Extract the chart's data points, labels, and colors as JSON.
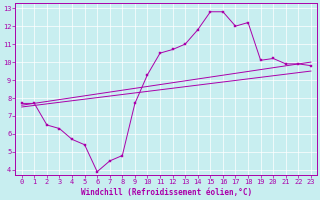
{
  "xlabel": "Windchill (Refroidissement éolien,°C)",
  "ylabel": "",
  "xlim": [
    -0.5,
    23.5
  ],
  "ylim": [
    3.7,
    13.3
  ],
  "xticks": [
    0,
    1,
    2,
    3,
    4,
    5,
    6,
    7,
    8,
    9,
    10,
    11,
    12,
    13,
    14,
    15,
    16,
    17,
    18,
    19,
    20,
    21,
    22,
    23
  ],
  "yticks": [
    4,
    5,
    6,
    7,
    8,
    9,
    10,
    11,
    12,
    13
  ],
  "bg_color": "#c8eef0",
  "line_color": "#aa00aa",
  "line1_x": [
    0,
    1,
    2,
    3,
    4,
    5,
    6,
    7,
    8,
    9,
    10,
    11,
    12,
    13,
    14,
    15,
    16,
    17,
    18,
    19,
    20,
    21,
    22,
    23
  ],
  "line1_y": [
    7.7,
    7.7,
    6.5,
    6.3,
    5.7,
    5.4,
    3.9,
    4.5,
    4.8,
    7.7,
    9.3,
    10.5,
    10.7,
    11.0,
    11.8,
    12.8,
    12.8,
    12.0,
    12.2,
    10.1,
    10.2,
    9.9,
    9.9,
    9.8
  ],
  "line2_x": [
    0,
    23
  ],
  "line2_y": [
    7.6,
    10.0
  ],
  "line3_x": [
    0,
    23
  ],
  "line3_y": [
    7.5,
    9.5
  ],
  "xlabel_fontsize": 5.5,
  "tick_fontsize": 5.0,
  "marker_size": 1.8,
  "linewidth": 0.7
}
